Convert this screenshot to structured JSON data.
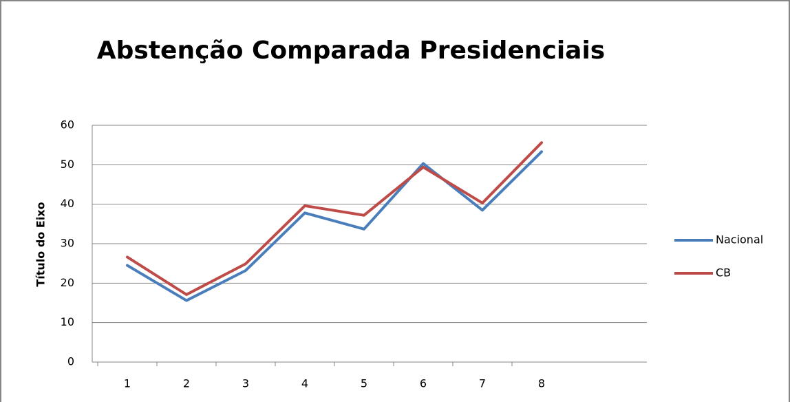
{
  "chart_data": {
    "type": "line",
    "title": "Abstenção Comparada Presidenciais",
    "y_label": "Título do Eixo",
    "categories": [
      "1",
      "2",
      "3",
      "4",
      "5",
      "6",
      "7",
      "8"
    ],
    "series": [
      {
        "name": "Nacional",
        "color": "#4a7ebb",
        "values": [
          24.5,
          15.6,
          23.2,
          37.8,
          33.7,
          50.3,
          38.5,
          53.3
        ]
      },
      {
        "name": "CB",
        "color": "#be4b48",
        "values": [
          26.6,
          17.1,
          24.9,
          39.6,
          37.2,
          49.4,
          40.3,
          55.6
        ]
      }
    ],
    "ylim": [
      0,
      60
    ],
    "yticks": [
      0,
      10,
      20,
      30,
      40,
      50,
      60
    ],
    "grid": true,
    "legend": "right"
  }
}
